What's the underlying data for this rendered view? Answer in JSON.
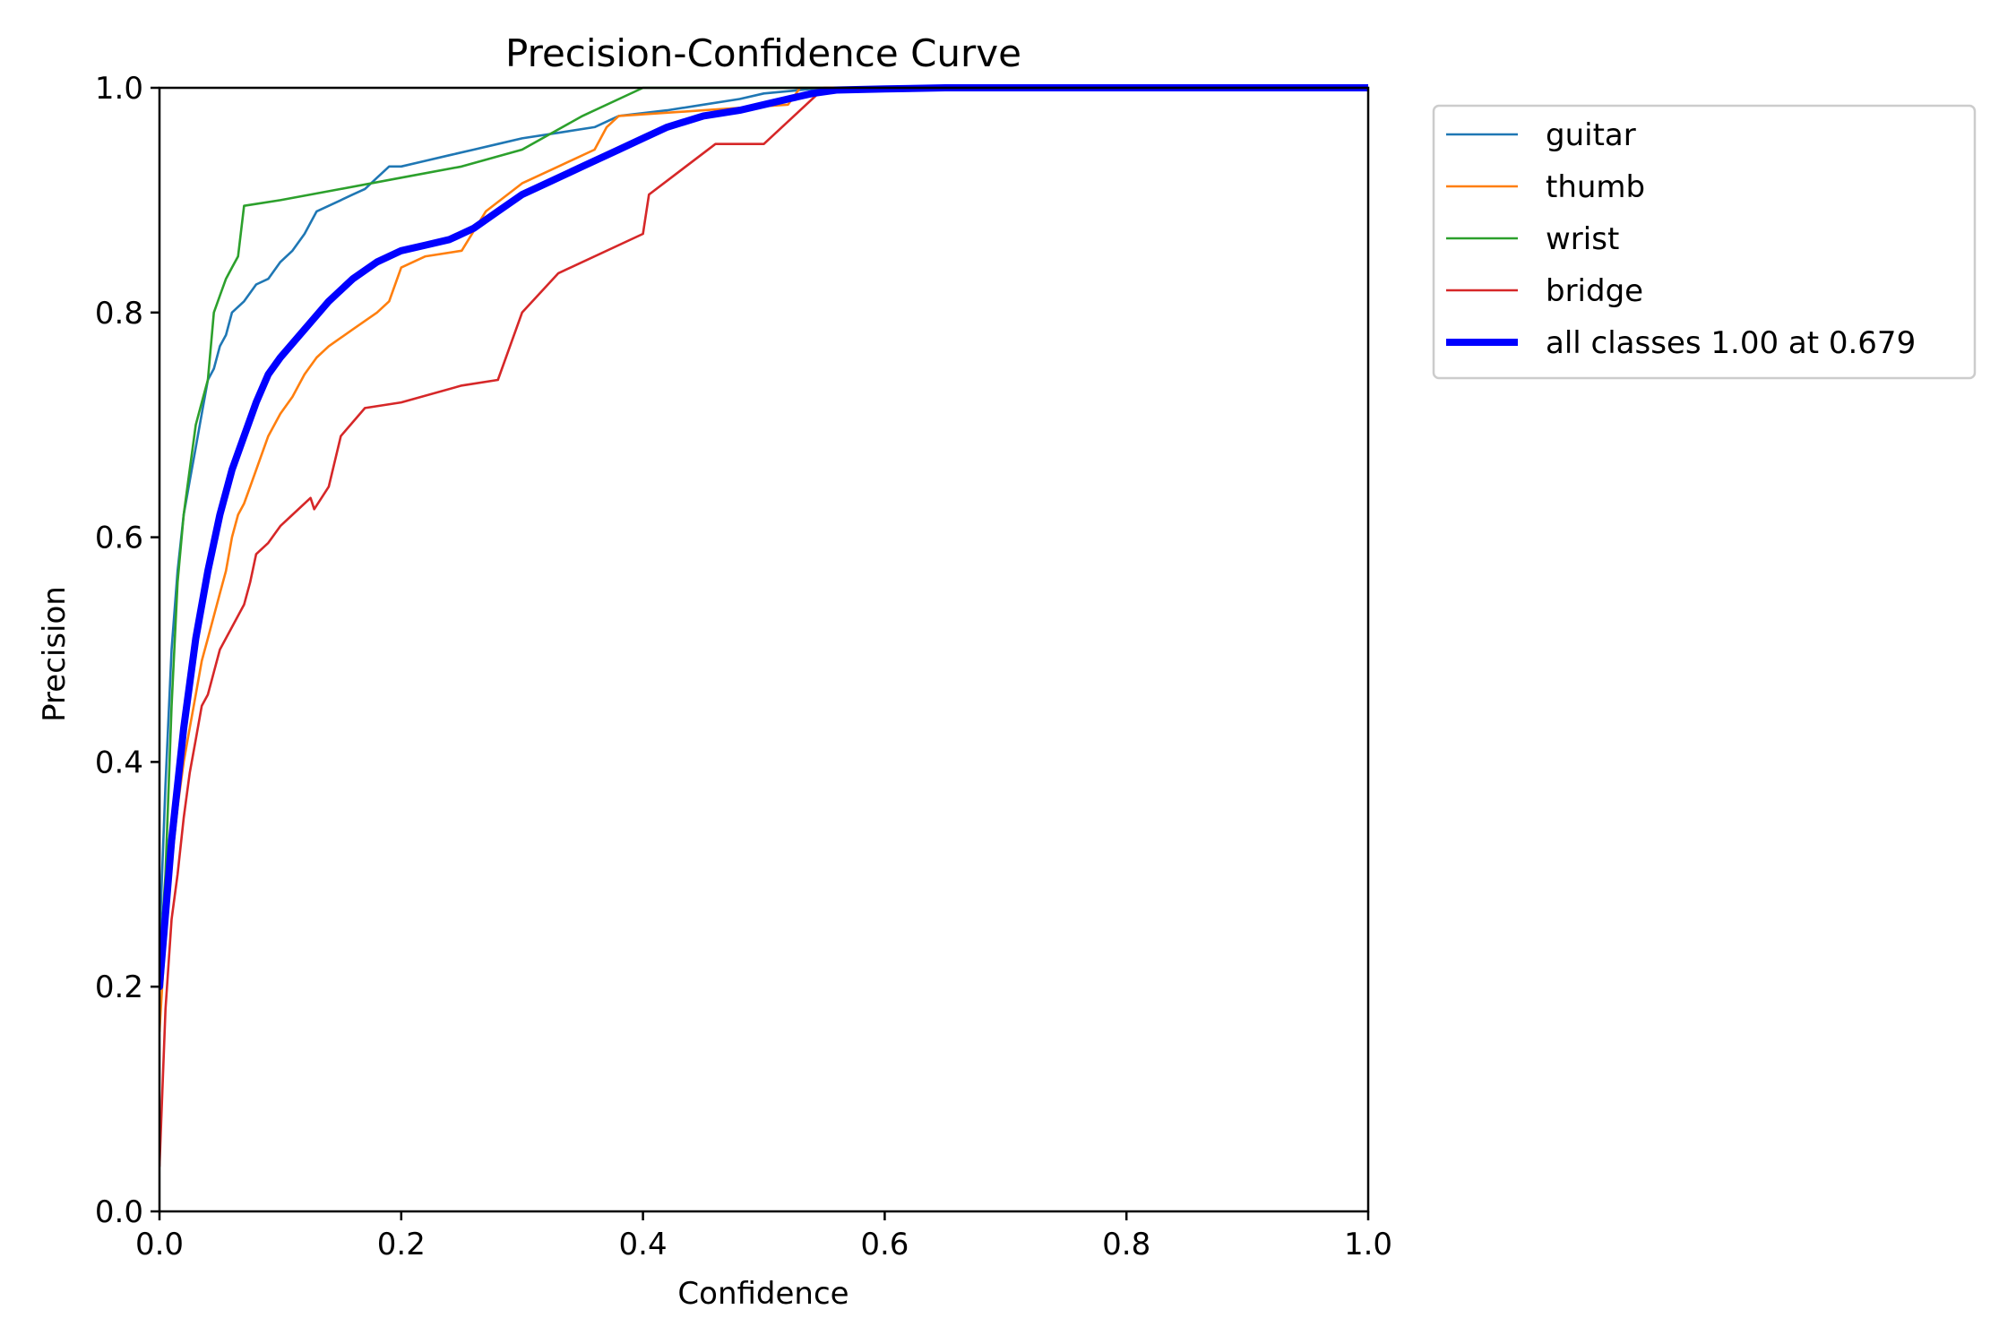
{
  "chart_data": {
    "type": "line",
    "title": "Precision-Confidence Curve",
    "xlabel": "Confidence",
    "ylabel": "Precision",
    "xlim": [
      0,
      1
    ],
    "ylim": [
      0,
      1
    ],
    "xticks": [
      "0.0",
      "0.2",
      "0.4",
      "0.6",
      "0.8",
      "1.0"
    ],
    "yticks": [
      "0.0",
      "0.2",
      "0.4",
      "0.6",
      "0.8",
      "1.0"
    ],
    "grid": false,
    "legend_position": "outside upper right",
    "series": [
      {
        "name": "guitar",
        "color": "#1f77b4",
        "x": [
          0.0,
          0.005,
          0.01,
          0.015,
          0.02,
          0.025,
          0.03,
          0.035,
          0.04,
          0.045,
          0.05,
          0.055,
          0.06,
          0.07,
          0.08,
          0.09,
          0.1,
          0.11,
          0.12,
          0.13,
          0.14,
          0.15,
          0.16,
          0.17,
          0.18,
          0.19,
          0.2,
          0.22,
          0.24,
          0.26,
          0.28,
          0.3,
          0.33,
          0.36,
          0.38,
          0.42,
          0.45,
          0.48,
          0.5,
          0.53,
          0.55,
          0.6,
          0.7,
          0.8,
          0.9,
          1.0
        ],
        "y": [
          0.24,
          0.38,
          0.5,
          0.57,
          0.62,
          0.65,
          0.68,
          0.71,
          0.74,
          0.75,
          0.77,
          0.78,
          0.8,
          0.81,
          0.825,
          0.83,
          0.845,
          0.855,
          0.87,
          0.89,
          0.895,
          0.9,
          0.905,
          0.91,
          0.92,
          0.93,
          0.93,
          0.935,
          0.94,
          0.945,
          0.95,
          0.955,
          0.96,
          0.965,
          0.975,
          0.98,
          0.985,
          0.99,
          0.995,
          0.998,
          1.0,
          1.0,
          1.0,
          1.0,
          1.0,
          1.0
        ]
      },
      {
        "name": "thumb",
        "color": "#ff7f0e",
        "x": [
          0.0,
          0.005,
          0.01,
          0.015,
          0.02,
          0.025,
          0.03,
          0.035,
          0.04,
          0.045,
          0.05,
          0.055,
          0.06,
          0.065,
          0.07,
          0.075,
          0.08,
          0.09,
          0.1,
          0.11,
          0.12,
          0.13,
          0.14,
          0.16,
          0.18,
          0.19,
          0.2,
          0.22,
          0.25,
          0.27,
          0.3,
          0.33,
          0.36,
          0.37,
          0.38,
          0.45,
          0.52,
          0.53,
          0.6,
          0.7,
          0.8,
          0.9,
          1.0
        ],
        "y": [
          0.16,
          0.25,
          0.31,
          0.36,
          0.4,
          0.43,
          0.46,
          0.49,
          0.51,
          0.53,
          0.55,
          0.57,
          0.6,
          0.62,
          0.63,
          0.645,
          0.66,
          0.69,
          0.71,
          0.725,
          0.745,
          0.76,
          0.77,
          0.785,
          0.8,
          0.81,
          0.84,
          0.85,
          0.855,
          0.89,
          0.915,
          0.93,
          0.945,
          0.965,
          0.975,
          0.98,
          0.985,
          1.0,
          1.0,
          1.0,
          1.0,
          1.0,
          1.0
        ]
      },
      {
        "name": "wrist",
        "color": "#2ca02c",
        "x": [
          0.0,
          0.005,
          0.01,
          0.015,
          0.02,
          0.025,
          0.03,
          0.035,
          0.04,
          0.045,
          0.05,
          0.055,
          0.06,
          0.065,
          0.07,
          0.1,
          0.15,
          0.2,
          0.25,
          0.3,
          0.35,
          0.4,
          0.42,
          0.6,
          0.8,
          1.0
        ],
        "y": [
          0.22,
          0.3,
          0.45,
          0.56,
          0.62,
          0.66,
          0.7,
          0.72,
          0.74,
          0.8,
          0.815,
          0.83,
          0.84,
          0.85,
          0.895,
          0.9,
          0.91,
          0.92,
          0.93,
          0.945,
          0.975,
          1.0,
          1.0,
          1.0,
          1.0,
          1.0
        ]
      },
      {
        "name": "bridge",
        "color": "#d62728",
        "x": [
          0.0,
          0.005,
          0.01,
          0.015,
          0.02,
          0.025,
          0.03,
          0.035,
          0.04,
          0.045,
          0.05,
          0.06,
          0.07,
          0.075,
          0.08,
          0.09,
          0.1,
          0.11,
          0.125,
          0.128,
          0.14,
          0.15,
          0.17,
          0.2,
          0.25,
          0.28,
          0.29,
          0.3,
          0.33,
          0.4,
          0.405,
          0.46,
          0.5,
          0.53,
          0.55,
          0.6,
          0.7,
          0.8,
          0.9,
          1.0
        ],
        "y": [
          0.04,
          0.18,
          0.26,
          0.3,
          0.35,
          0.39,
          0.42,
          0.45,
          0.46,
          0.48,
          0.5,
          0.52,
          0.54,
          0.56,
          0.585,
          0.595,
          0.61,
          0.62,
          0.635,
          0.625,
          0.645,
          0.69,
          0.715,
          0.72,
          0.735,
          0.74,
          0.77,
          0.8,
          0.835,
          0.87,
          0.905,
          0.95,
          0.95,
          0.98,
          1.0,
          1.0,
          1.0,
          1.0,
          1.0,
          1.0
        ]
      },
      {
        "name": "all classes 1.00 at 0.679",
        "color": "#0000ff",
        "thick": true,
        "x": [
          0.0,
          0.01,
          0.02,
          0.03,
          0.04,
          0.05,
          0.06,
          0.07,
          0.08,
          0.09,
          0.1,
          0.12,
          0.14,
          0.16,
          0.18,
          0.2,
          0.22,
          0.24,
          0.26,
          0.28,
          0.3,
          0.32,
          0.35,
          0.38,
          0.4,
          0.42,
          0.45,
          0.48,
          0.5,
          0.52,
          0.54,
          0.56,
          0.6,
          0.65,
          0.679,
          0.7,
          0.8,
          0.9,
          1.0
        ],
        "y": [
          0.2,
          0.33,
          0.43,
          0.51,
          0.57,
          0.62,
          0.66,
          0.69,
          0.72,
          0.745,
          0.76,
          0.785,
          0.81,
          0.83,
          0.845,
          0.855,
          0.86,
          0.865,
          0.875,
          0.89,
          0.905,
          0.915,
          0.93,
          0.945,
          0.955,
          0.965,
          0.975,
          0.98,
          0.985,
          0.99,
          0.995,
          0.998,
          0.999,
          1.0,
          1.0,
          1.0,
          1.0,
          1.0,
          1.0
        ]
      }
    ]
  }
}
